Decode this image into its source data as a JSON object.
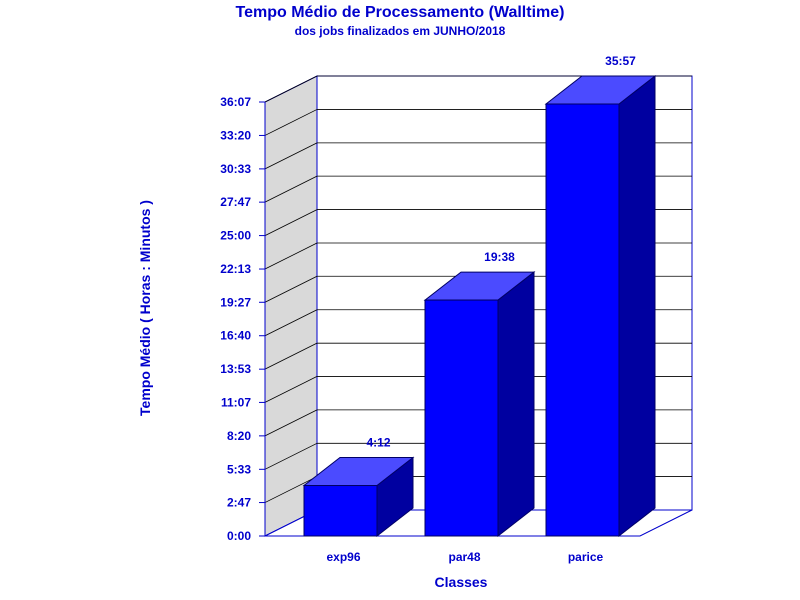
{
  "chart_data": {
    "type": "bar",
    "title": "Tempo Médio de Processamento (Walltime)",
    "subtitle": "dos jobs finalizados em JUNHO/2018",
    "xlabel": "Classes",
    "ylabel": "Tempo Médio ( Horas : Minutos )",
    "categories": [
      "exp96",
      "par48",
      "parice"
    ],
    "values": [
      252,
      1178,
      2157
    ],
    "value_labels": [
      "4:12",
      "19:38",
      "35:57"
    ],
    "y_ticks": [
      0,
      167,
      333,
      500,
      667,
      833,
      1000,
      1167,
      1333,
      1500,
      1667,
      1833,
      2000,
      2167
    ],
    "y_tick_labels": [
      "0:00",
      "2:47",
      "5:33",
      "8:20",
      "11:07",
      "13:53",
      "16:40",
      "19:27",
      "22:13",
      "25:00",
      "27:47",
      "30:33",
      "33:20",
      "36:07"
    ],
    "ylim": [
      0,
      2167
    ],
    "grid": true,
    "legend": "none",
    "colors": {
      "text": "#0000cc",
      "bar_front": "#0000ff",
      "bar_top": "#4b4bff",
      "bar_side": "#0000a0",
      "wall": "#d9d9d9",
      "grid": "#000000",
      "axis": "#0000cc",
      "bar_edge": "#000066"
    }
  }
}
